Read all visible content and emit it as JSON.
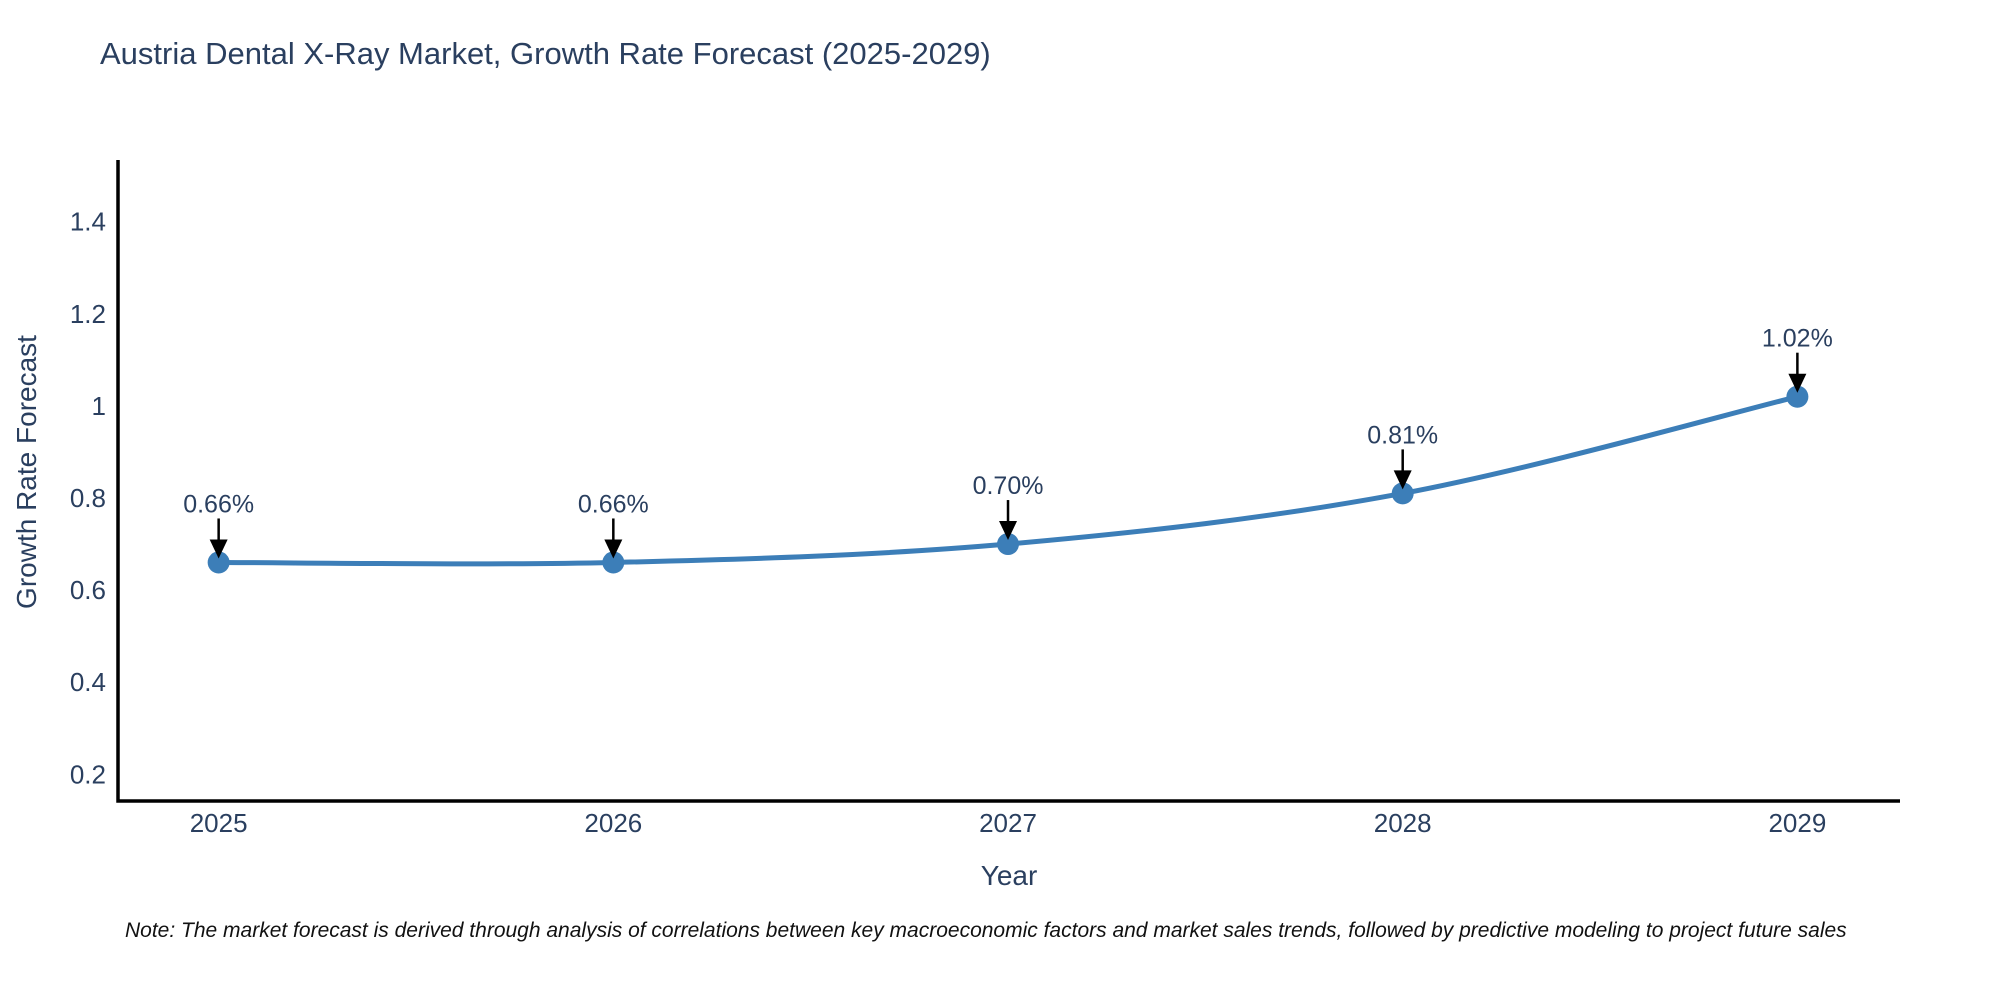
{
  "title": "Austria Dental X-Ray Market, Growth Rate Forecast (2025-2029)",
  "note": "Note: The market forecast is derived through analysis of correlations between key macroeconomic factors and market sales trends, followed by predictive modeling to project future sales",
  "chart_data": {
    "type": "line",
    "title": "Austria Dental X-Ray Market, Growth Rate Forecast (2025-2029)",
    "xlabel": "Year",
    "ylabel": "Growth Rate Forecast",
    "categories": [
      2025,
      2026,
      2027,
      2028,
      2029
    ],
    "series": [
      {
        "name": "Growth Rate Forecast",
        "values": [
          0.66,
          0.66,
          0.7,
          0.81,
          1.02
        ],
        "point_labels": [
          "0.66%",
          "0.66%",
          "0.70%",
          "0.81%",
          "1.02%"
        ]
      }
    ],
    "y_ticks": [
      0.2,
      0.4,
      0.6,
      0.8,
      1,
      1.2,
      1.4
    ],
    "ylim": [
      0.142,
      1.534
    ],
    "xlim": [
      2024.745,
      2029.26
    ],
    "grid": false,
    "legend": "none",
    "line_shape": "spline",
    "colors": {
      "line": "#3c7eb8",
      "marker": "#3c7eb8",
      "axis": "#000000",
      "text": "#2a3f5f",
      "annotation_arrow": "#000000"
    }
  }
}
